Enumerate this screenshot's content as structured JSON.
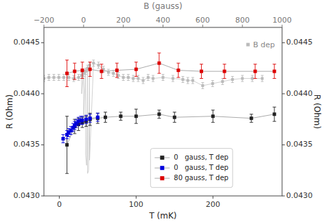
{
  "chart_data": {
    "type": "scatter",
    "xlabel": "T (mK)",
    "x2label": "B (gauss)",
    "ylabel": "R (Ohm)",
    "y2label": "R (Ohm)",
    "xlim": [
      -20,
      290
    ],
    "xticks": [
      0,
      100,
      200
    ],
    "x2lim": [
      -200,
      1000
    ],
    "x2ticks": [
      {
        "value": -200,
        "label": "−200"
      },
      0,
      200,
      400,
      600,
      800,
      1000
    ],
    "ylim": [
      0.043,
      0.04465
    ],
    "yticks": [
      {
        "value": 0.043,
        "label": "0.0430"
      },
      0.0435,
      {
        "value": 0.044,
        "label": "0.0440"
      },
      0.0445
    ],
    "y2lim": [
      0.043,
      0.04465
    ],
    "y2ticks": [
      {
        "value": 0.043,
        "label": "0.0430"
      },
      0.0435,
      {
        "value": 0.044,
        "label": "0.0440"
      },
      0.0445
    ],
    "grid": false,
    "legend": "lower center",
    "series": [
      {
        "name": "B dep",
        "type": "scatter",
        "axis": "x2",
        "marker": "square",
        "color": "#bbbbbb",
        "x": [
          -200,
          -175,
          -150,
          -125,
          -100,
          -75,
          -50,
          -25,
          -10,
          0,
          10,
          20,
          30,
          50,
          75,
          100,
          125,
          150,
          175,
          200,
          225,
          250,
          275,
          300,
          325,
          350,
          400,
          450,
          500,
          525,
          550,
          600,
          650,
          700,
          750,
          800,
          850,
          900
        ],
        "values": [
          0.04415,
          0.04416,
          0.04416,
          0.04416,
          0.04416,
          0.04416,
          0.04415,
          0.04416,
          0.04418,
          0.0442,
          0.04422,
          0.04425,
          0.04428,
          0.0443,
          0.04428,
          0.04424,
          0.04421,
          0.0442,
          0.04418,
          0.04416,
          0.04416,
          0.04415,
          0.04415,
          0.04413,
          0.04416,
          0.04415,
          0.04416,
          0.04415,
          0.04414,
          0.04413,
          0.04413,
          0.04408,
          0.0441,
          0.04412,
          0.04414,
          0.04415,
          0.04415,
          0.04415
        ],
        "errors": [
          3e-05,
          3e-05,
          3e-05,
          3e-05,
          3e-05,
          3e-05,
          3e-05,
          3e-05,
          3e-05,
          3e-05,
          3e-05,
          3e-05,
          3e-05,
          3e-05,
          3e-05,
          3e-05,
          3e-05,
          3e-05,
          3e-05,
          3e-05,
          3e-05,
          3e-05,
          3e-05,
          3e-05,
          3e-05,
          3e-05,
          3e-05,
          3e-05,
          3e-05,
          3e-05,
          3e-05,
          3e-05,
          3e-05,
          3e-05,
          3e-05,
          3e-05,
          3e-05,
          3e-05
        ]
      },
      {
        "type": "line",
        "axis": "x2",
        "color": "#cccccc",
        "x": [
          -200,
          -175,
          -150,
          -125,
          -100,
          -75,
          -50,
          -25,
          -10,
          -10,
          0,
          0,
          10,
          10,
          15,
          20,
          20,
          25,
          30,
          30,
          50,
          75,
          100,
          125,
          150,
          175,
          200,
          225,
          250,
          275,
          300,
          325,
          350,
          400,
          450,
          500,
          525,
          550,
          600,
          650,
          700,
          750,
          800,
          850,
          900
        ],
        "values": [
          0.04415,
          0.04416,
          0.04416,
          0.04416,
          0.04416,
          0.04416,
          0.04415,
          0.04416,
          0.04418,
          0.044,
          0.0442,
          0.04375,
          0.04422,
          0.0434,
          0.0433,
          0.04425,
          0.04322,
          0.04325,
          0.04428,
          0.04335,
          0.0443,
          0.04428,
          0.04424,
          0.04421,
          0.0442,
          0.04418,
          0.04416,
          0.04416,
          0.04415,
          0.04415,
          0.04413,
          0.04416,
          0.04415,
          0.04416,
          0.04415,
          0.04414,
          0.04413,
          0.04413,
          0.04408,
          0.0441,
          0.04412,
          0.04414,
          0.04415,
          0.04415,
          0.04415
        ]
      },
      {
        "name": "0   gauss, T dep",
        "type": "line",
        "marker": "square",
        "color": "#222222",
        "x": [
          10,
          20,
          25,
          30,
          35,
          40,
          50,
          60,
          80,
          100,
          130,
          150,
          200,
          250,
          280
        ],
        "values": [
          0.0435,
          0.04368,
          0.0437,
          0.04372,
          0.04373,
          0.04375,
          0.04376,
          0.04377,
          0.04378,
          0.04378,
          0.0438,
          0.04377,
          0.04378,
          0.04376,
          0.0438
        ],
        "errors": [
          0.00028,
          7e-05,
          6e-05,
          5e-05,
          5e-05,
          6e-05,
          5e-05,
          5e-05,
          4e-05,
          7e-05,
          4e-05,
          5e-05,
          6e-05,
          4e-05,
          7e-05
        ]
      },
      {
        "name": "0   gauss, T dep",
        "type": "line",
        "marker": "square",
        "color": "#0000dd",
        "x": [
          5,
          10,
          12,
          15,
          18,
          20,
          22,
          25,
          28,
          30,
          35,
          40,
          50
        ],
        "values": [
          0.04356,
          0.0436,
          0.04362,
          0.04364,
          0.04367,
          0.04369,
          0.04371,
          0.04373,
          0.04374,
          0.04374,
          0.04375,
          0.04376,
          0.04377
        ],
        "errors": [
          4e-05,
          4e-05,
          4e-05,
          4e-05,
          4e-05,
          4e-05,
          4e-05,
          4e-05,
          4e-05,
          4e-05,
          4e-05,
          4e-05,
          4e-05
        ]
      },
      {
        "name": "80 gauss, T dep",
        "type": "line",
        "marker": "square",
        "color": "#dd0000",
        "x": [
          10,
          20,
          30,
          40,
          55,
          75,
          100,
          130,
          155,
          185,
          215,
          255,
          280
        ],
        "values": [
          0.0442,
          0.04422,
          0.04423,
          0.04424,
          0.04422,
          0.04423,
          0.04424,
          0.0443,
          0.04423,
          0.04422,
          0.04422,
          0.04422,
          0.04422
        ],
        "errors": [
          0.00013,
          8e-05,
          8e-05,
          7e-05,
          7e-05,
          7e-05,
          7e-05,
          0.0001,
          7e-05,
          7e-05,
          7e-05,
          7e-05,
          7e-05
        ]
      }
    ]
  }
}
